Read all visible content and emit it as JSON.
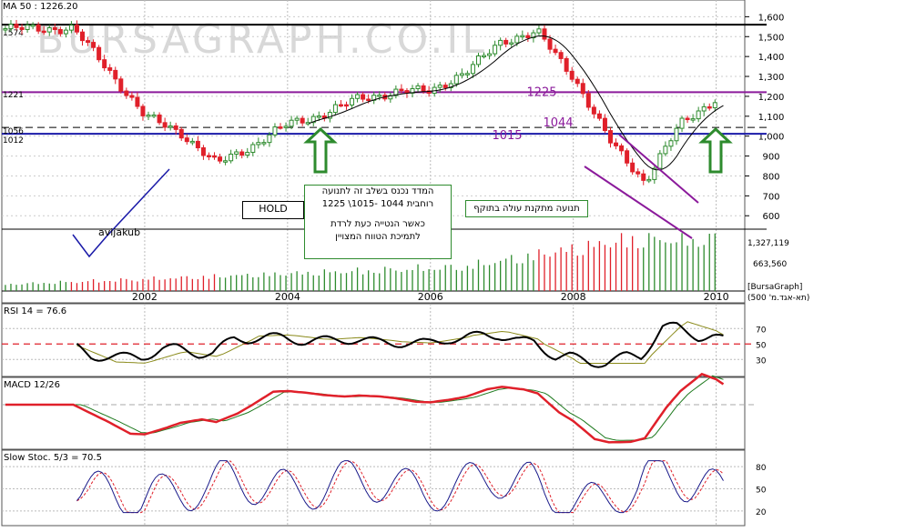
{
  "main": {
    "ma_label": "MA 50 : 1226.20",
    "watermark": "BURSAGRAPH.CO.IL",
    "watermark_color": "#d8d8d8",
    "y_ticks": [
      "1,600",
      "1,500",
      "1,400",
      "1,300",
      "1,200",
      "1,100",
      "1,000",
      "900",
      "800",
      "700",
      "600"
    ],
    "left_levels": [
      "1574",
      "1221",
      "1056",
      "1012"
    ],
    "level_1225": "1225",
    "level_1044": "1044",
    "level_1015": "1015",
    "signature": "avijakub",
    "hold": "HOLD",
    "note1_line1": "המדד נכנס בשלב זה לתנועה",
    "note1_line2": "רוחבית 1044 -1015\\ 1225",
    "note1_line3": "כאשר הנטייה כעת לרדת",
    "note1_line4": "לתמיכת הטווח המצויין",
    "note2": "תנועה מתקנת עולה בתוקף",
    "volume_ticks": [
      "1,327,119",
      "663,560"
    ],
    "x_labels": [
      "2002",
      "2004",
      "2006",
      "2008",
      "2010"
    ],
    "source": "[BursaGraph]",
    "index_name": "(תא-אגד.מ' 500)",
    "up_color": "#2e8b2e",
    "down_color": "#e0202a",
    "purple": "#8b1a9b",
    "blue": "#1a1aa8"
  },
  "rsi": {
    "label": "RSI 14 = 76.6",
    "ticks": [
      "70",
      "50",
      "30"
    ]
  },
  "macd": {
    "label": "MACD 12/26"
  },
  "stoch": {
    "label": "Slow Stoc. 5/3 = 70.5",
    "ticks": [
      "80",
      "50",
      "20"
    ]
  },
  "chart_data": {
    "type": "line",
    "title": "",
    "x": [
      "2001.0",
      "2001.5",
      "2002.0",
      "2002.5",
      "2003.0",
      "2003.5",
      "2004.0",
      "2004.5",
      "2005.0",
      "2005.5",
      "2006.0",
      "2006.5",
      "2007.0",
      "2007.5",
      "2008.0",
      "2008.5",
      "2009.0",
      "2009.5",
      "2010.0"
    ],
    "series": [
      {
        "values": [
          1540,
          1330,
          1100,
          1020,
          860,
          950,
          1060,
          1110,
          1190,
          1220,
          1230,
          1320,
          1480,
          1520,
          1300,
          980,
          770,
          1060,
          1190
        ]
      }
    ],
    "ylim": [
      560,
      1620
    ],
    "annotations": [
      "1574",
      "1221",
      "1056",
      "1012",
      "1225",
      "1044",
      "1015"
    ]
  }
}
